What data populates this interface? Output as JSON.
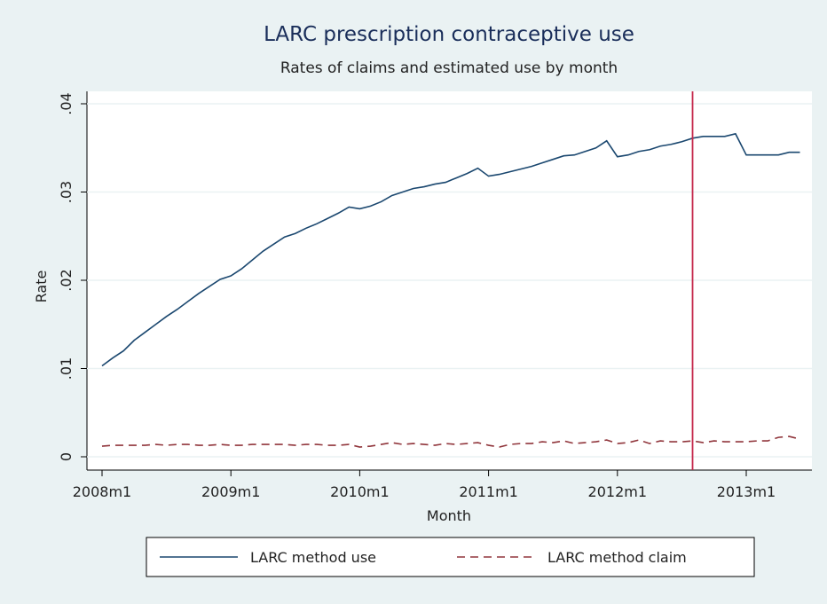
{
  "chart_data": {
    "type": "line",
    "title": "LARC prescription contraceptive use",
    "subtitle": "Rates of claims and estimated use by month",
    "x_label": "Month",
    "y_label": "Rate",
    "x": [
      "2008m1",
      "2008m2",
      "2008m3",
      "2008m4",
      "2008m5",
      "2008m6",
      "2008m7",
      "2008m8",
      "2008m9",
      "2008m10",
      "2008m11",
      "2008m12",
      "2009m1",
      "2009m2",
      "2009m3",
      "2009m4",
      "2009m5",
      "2009m6",
      "2009m7",
      "2009m8",
      "2009m9",
      "2009m10",
      "2009m11",
      "2009m12",
      "2010m1",
      "2010m2",
      "2010m3",
      "2010m4",
      "2010m5",
      "2010m6",
      "2010m7",
      "2010m8",
      "2010m9",
      "2010m10",
      "2010m11",
      "2010m12",
      "2011m1",
      "2011m2",
      "2011m3",
      "2011m4",
      "2011m5",
      "2011m6",
      "2011m7",
      "2011m8",
      "2011m9",
      "2011m10",
      "2011m11",
      "2011m12",
      "2012m1",
      "2012m2",
      "2012m3",
      "2012m4",
      "2012m5",
      "2012m6",
      "2012m7",
      "2012m8",
      "2012m9",
      "2012m10",
      "2012m11",
      "2012m12",
      "2013m1",
      "2013m2",
      "2013m3",
      "2013m4",
      "2013m5",
      "2013m6"
    ],
    "series": [
      {
        "name": "LARC method use",
        "color": "#1a476f",
        "dash": "none",
        "values": [
          0.0103,
          0.0112,
          0.012,
          0.0132,
          0.0141,
          0.015,
          0.0159,
          0.0167,
          0.0176,
          0.0185,
          0.0193,
          0.0201,
          0.0205,
          0.0213,
          0.0223,
          0.0233,
          0.0241,
          0.0249,
          0.0253,
          0.0259,
          0.0264,
          0.027,
          0.0276,
          0.0283,
          0.0281,
          0.0284,
          0.0289,
          0.0296,
          0.03,
          0.0304,
          0.0306,
          0.0309,
          0.0311,
          0.0316,
          0.0321,
          0.0327,
          0.0318,
          0.032,
          0.0323,
          0.0326,
          0.0329,
          0.0333,
          0.0337,
          0.0341,
          0.0342,
          0.0346,
          0.035,
          0.0358,
          0.034,
          0.0342,
          0.0346,
          0.0348,
          0.0352,
          0.0354,
          0.0357,
          0.0361,
          0.0363,
          0.0363,
          0.0363,
          0.0366,
          0.0342,
          0.0342,
          0.0342,
          0.0342,
          0.0345,
          0.0345
        ]
      },
      {
        "name": "LARC method claim",
        "color": "#90353b",
        "dash": "9,6",
        "values": [
          0.0012,
          0.0013,
          0.0013,
          0.0013,
          0.0013,
          0.0014,
          0.0013,
          0.0014,
          0.0014,
          0.0013,
          0.0013,
          0.0014,
          0.0013,
          0.0013,
          0.0014,
          0.0014,
          0.0014,
          0.0014,
          0.0013,
          0.0014,
          0.0014,
          0.0013,
          0.0013,
          0.0014,
          0.0011,
          0.0012,
          0.0014,
          0.0016,
          0.0014,
          0.0015,
          0.0014,
          0.0013,
          0.0015,
          0.0014,
          0.0015,
          0.0016,
          0.0013,
          0.0011,
          0.0014,
          0.0015,
          0.0015,
          0.0017,
          0.0016,
          0.0018,
          0.0015,
          0.0016,
          0.0017,
          0.0019,
          0.0015,
          0.0016,
          0.0019,
          0.0015,
          0.0018,
          0.0017,
          0.0017,
          0.0018,
          0.0016,
          0.0018,
          0.0017,
          0.0017,
          0.0017,
          0.0018,
          0.0018,
          0.0022,
          0.0023,
          0.002
        ]
      }
    ],
    "reference_line": {
      "x": "2012m8",
      "color": "#c4264a"
    },
    "ylim": [
      0,
      0.04
    ],
    "yticks": [
      0,
      {
        "value": 0.01,
        "label": ".01"
      },
      {
        "value": 0.02,
        "label": ".02"
      },
      {
        "value": 0.03,
        "label": ".03"
      },
      {
        "value": 0.04,
        "label": ".04"
      }
    ],
    "xticks": [
      "2008m1",
      "2009m1",
      "2010m1",
      "2011m1",
      "2012m1",
      "2013m1"
    ],
    "grid": true,
    "legend": "bottom"
  }
}
